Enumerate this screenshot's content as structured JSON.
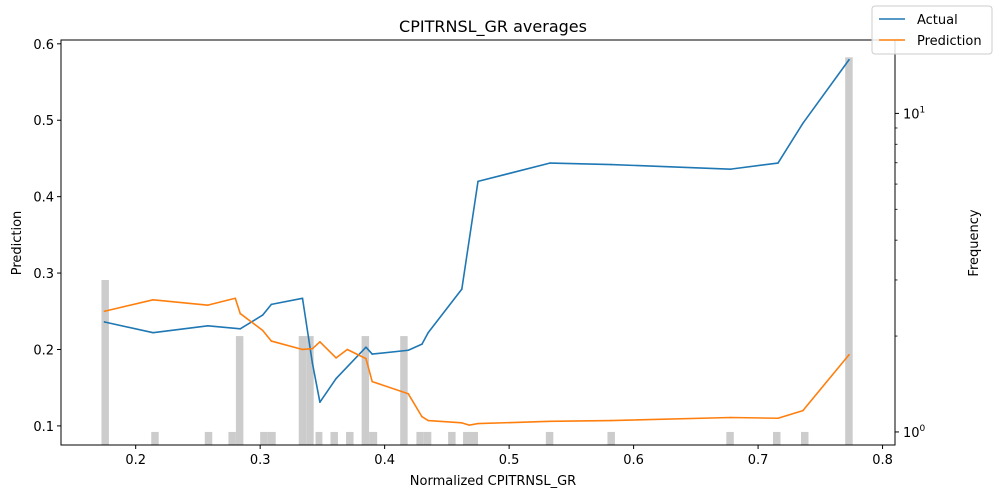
{
  "chart_data": {
    "type": "line",
    "title": "CPITRNSL_GR averages",
    "xlabel": "Normalized CPITRNSL_GR",
    "ylabel": "Prediction",
    "y2label": "Frequency",
    "xlim": [
      0.14,
      0.81
    ],
    "ylim": [
      0.075,
      0.605
    ],
    "y2lim": [
      0.91,
      17.0
    ],
    "y2scale": "log",
    "x_ticks": [
      0.2,
      0.3,
      0.4,
      0.5,
      0.6,
      0.7,
      0.8
    ],
    "x_tick_labels": [
      "0.2",
      "0.3",
      "0.4",
      "0.5",
      "0.6",
      "0.7",
      "0.8"
    ],
    "y_ticks": [
      0.1,
      0.2,
      0.3,
      0.4,
      0.5,
      0.6
    ],
    "y_tick_labels": [
      "0.1",
      "0.2",
      "0.3",
      "0.4",
      "0.5",
      "0.6"
    ],
    "y2_ticks": [
      1,
      10
    ],
    "y2_tick_labels": [
      "10^0",
      "10^1"
    ],
    "legend_position": "top-right",
    "series": [
      {
        "name": "Actual",
        "color": "#1f77b4",
        "x": [
          0.175,
          0.214,
          0.258,
          0.284,
          0.302,
          0.309,
          0.334,
          0.342,
          0.348,
          0.361,
          0.385,
          0.39,
          0.419,
          0.43,
          0.435,
          0.462,
          0.475,
          0.533,
          0.582,
          0.678,
          0.716,
          0.736,
          0.773
        ],
        "values": [
          0.236,
          0.222,
          0.231,
          0.227,
          0.245,
          0.259,
          0.267,
          0.182,
          0.131,
          0.162,
          0.203,
          0.194,
          0.199,
          0.207,
          0.222,
          0.279,
          0.42,
          0.444,
          0.442,
          0.436,
          0.444,
          0.496,
          0.579
        ]
      },
      {
        "name": "Prediction",
        "color": "#ff7f0e",
        "x": [
          0.175,
          0.214,
          0.258,
          0.28,
          0.284,
          0.302,
          0.309,
          0.334,
          0.342,
          0.348,
          0.361,
          0.37,
          0.385,
          0.39,
          0.419,
          0.43,
          0.435,
          0.462,
          0.468,
          0.475,
          0.533,
          0.582,
          0.678,
          0.716,
          0.736,
          0.773
        ],
        "values": [
          0.25,
          0.265,
          0.258,
          0.267,
          0.247,
          0.225,
          0.211,
          0.2,
          0.201,
          0.21,
          0.189,
          0.2,
          0.188,
          0.158,
          0.142,
          0.112,
          0.107,
          0.104,
          0.101,
          0.103,
          0.106,
          0.107,
          0.111,
          0.11,
          0.12,
          0.193
        ]
      }
    ],
    "histogram": {
      "color": "#cccccc",
      "bins": [
        {
          "x0": 0.1725,
          "x1": 0.1785,
          "count": 3
        },
        {
          "x0": 0.2125,
          "x1": 0.2185,
          "count": 1
        },
        {
          "x0": 0.2555,
          "x1": 0.2615,
          "count": 1
        },
        {
          "x0": 0.2745,
          "x1": 0.2805,
          "count": 1
        },
        {
          "x0": 0.2805,
          "x1": 0.2865,
          "count": 2
        },
        {
          "x0": 0.3,
          "x1": 0.306,
          "count": 1
        },
        {
          "x0": 0.306,
          "x1": 0.3125,
          "count": 1
        },
        {
          "x0": 0.331,
          "x1": 0.337,
          "count": 2
        },
        {
          "x0": 0.337,
          "x1": 0.343,
          "count": 2
        },
        {
          "x0": 0.3445,
          "x1": 0.35,
          "count": 1
        },
        {
          "x0": 0.3565,
          "x1": 0.3625,
          "count": 1
        },
        {
          "x0": 0.369,
          "x1": 0.375,
          "count": 1
        },
        {
          "x0": 0.3815,
          "x1": 0.3875,
          "count": 2
        },
        {
          "x0": 0.3875,
          "x1": 0.394,
          "count": 1
        },
        {
          "x0": 0.4125,
          "x1": 0.4185,
          "count": 2
        },
        {
          "x0": 0.4255,
          "x1": 0.4315,
          "count": 1
        },
        {
          "x0": 0.4315,
          "x1": 0.4375,
          "count": 1
        },
        {
          "x0": 0.451,
          "x1": 0.457,
          "count": 1
        },
        {
          "x0": 0.463,
          "x1": 0.469,
          "count": 1
        },
        {
          "x0": 0.469,
          "x1": 0.475,
          "count": 1
        },
        {
          "x0": 0.5295,
          "x1": 0.5355,
          "count": 1
        },
        {
          "x0": 0.579,
          "x1": 0.585,
          "count": 1
        },
        {
          "x0": 0.6745,
          "x1": 0.6805,
          "count": 1
        },
        {
          "x0": 0.712,
          "x1": 0.718,
          "count": 1
        },
        {
          "x0": 0.7345,
          "x1": 0.7405,
          "count": 1
        },
        {
          "x0": 0.77,
          "x1": 0.776,
          "count": 15
        }
      ]
    }
  }
}
